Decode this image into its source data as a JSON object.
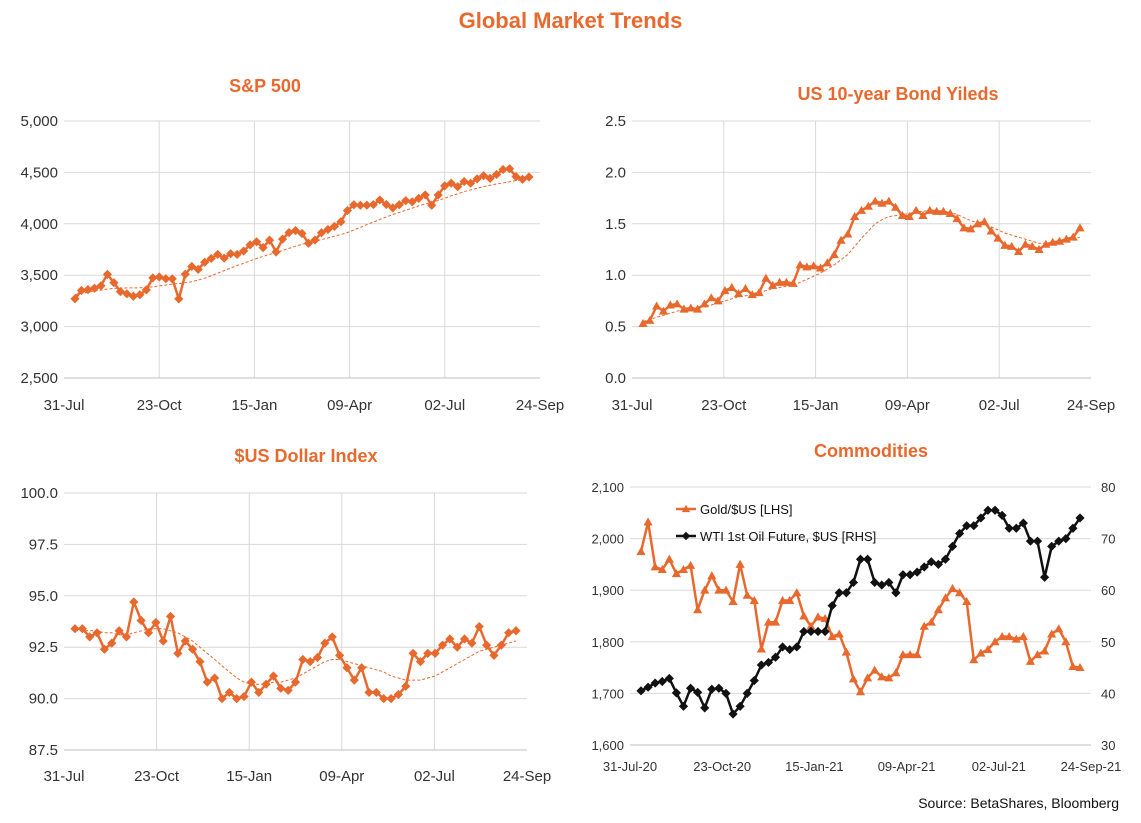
{
  "header": {
    "title": "Global Market Trends"
  },
  "footer": {
    "source": "Source: BetaShares, Bloomberg"
  },
  "colors": {
    "accent": "#e8692e",
    "grid": "#d9d9d9",
    "oil": "#111111"
  },
  "chart_data": [
    {
      "id": "sp500",
      "type": "line",
      "title": "S&P 500",
      "marker": "diamond",
      "ylim": [
        2500,
        5000
      ],
      "yticks": [
        "2,500",
        "3,000",
        "3,500",
        "4,000",
        "4,500",
        "5,000"
      ],
      "ytick_values": [
        2500,
        3000,
        3500,
        4000,
        4500,
        5000
      ],
      "xticks": [
        "31-Jul",
        "23-Oct",
        "15-Jan",
        "09-Apr",
        "02-Jul",
        "24-Sep"
      ],
      "grid": "vertical",
      "series": [
        {
          "values": [
            3271,
            3351,
            3360,
            3373,
            3397,
            3508,
            3427,
            3340,
            3319,
            3295,
            3310,
            3357,
            3474,
            3483,
            3466,
            3465,
            3270,
            3509,
            3585,
            3557,
            3626,
            3663,
            3702,
            3666,
            3709,
            3702,
            3735,
            3795,
            3825,
            3768,
            3841,
            3726,
            3851,
            3915,
            3934,
            3906,
            3811,
            3842,
            3913,
            3945,
            3975,
            4020,
            4128,
            4185,
            4180,
            4181,
            4187,
            4232,
            4188,
            4155,
            4185,
            4225,
            4214,
            4247,
            4281,
            4180,
            4280,
            4369,
            4395,
            4361,
            4411,
            4395,
            4437,
            4468,
            4442,
            4480,
            4528,
            4536,
            4459,
            4433,
            4455
          ]
        },
        {
          "style": "dashed",
          "values": [
            3310,
            3325,
            3335,
            3345,
            3355,
            3365,
            3372,
            3375,
            3376,
            3376,
            3377,
            3380,
            3387,
            3396,
            3405,
            3413,
            3419,
            3426,
            3437,
            3452,
            3471,
            3495,
            3519,
            3545,
            3570,
            3594,
            3616,
            3640,
            3662,
            3683,
            3703,
            3720,
            3740,
            3761,
            3782,
            3801,
            3814,
            3829,
            3846,
            3862,
            3878,
            3896,
            3914,
            3940,
            3966,
            3992,
            4017,
            4042,
            4066,
            4090,
            4110,
            4132,
            4153,
            4174,
            4193,
            4208,
            4227,
            4248,
            4272,
            4292,
            4313,
            4330,
            4345,
            4362,
            4375,
            4388,
            4398,
            4410,
            4420,
            4430,
            4438
          ]
        }
      ]
    },
    {
      "id": "bonds",
      "type": "line",
      "title": "US 10-year Bond Yileds",
      "marker": "triangle",
      "ylim": [
        0.0,
        2.5
      ],
      "yticks": [
        "0.0",
        "0.5",
        "1.0",
        "1.5",
        "2.0",
        "2.5"
      ],
      "ytick_values": [
        0.0,
        0.5,
        1.0,
        1.5,
        2.0,
        2.5
      ],
      "xticks": [
        "31-Jul",
        "23-Oct",
        "15-Jan",
        "09-Apr",
        "02-Jul",
        "24-Sep"
      ],
      "grid": "vertical",
      "series": [
        {
          "values": [
            0.53,
            0.56,
            0.7,
            0.65,
            0.71,
            0.72,
            0.67,
            0.68,
            0.67,
            0.72,
            0.78,
            0.75,
            0.85,
            0.88,
            0.82,
            0.87,
            0.81,
            0.83,
            0.97,
            0.9,
            0.93,
            0.93,
            0.92,
            1.1,
            1.08,
            1.09,
            1.07,
            1.12,
            1.2,
            1.34,
            1.4,
            1.57,
            1.63,
            1.67,
            1.72,
            1.7,
            1.72,
            1.66,
            1.58,
            1.57,
            1.63,
            1.58,
            1.63,
            1.62,
            1.62,
            1.6,
            1.55,
            1.46,
            1.45,
            1.5,
            1.52,
            1.43,
            1.36,
            1.29,
            1.28,
            1.23,
            1.3,
            1.28,
            1.25,
            1.3,
            1.32,
            1.33,
            1.35,
            1.37,
            1.46
          ]
        },
        {
          "style": "dashed",
          "values": [
            0.55,
            0.57,
            0.59,
            0.61,
            0.63,
            0.65,
            0.67,
            0.68,
            0.69,
            0.7,
            0.71,
            0.73,
            0.75,
            0.77,
            0.79,
            0.8,
            0.81,
            0.83,
            0.85,
            0.87,
            0.88,
            0.89,
            0.9,
            0.93,
            0.96,
            0.99,
            1.02,
            1.06,
            1.1,
            1.15,
            1.2,
            1.28,
            1.36,
            1.43,
            1.5,
            1.54,
            1.57,
            1.58,
            1.59,
            1.6,
            1.62,
            1.62,
            1.63,
            1.63,
            1.62,
            1.61,
            1.59,
            1.56,
            1.53,
            1.51,
            1.49,
            1.47,
            1.44,
            1.41,
            1.39,
            1.37,
            1.35,
            1.33,
            1.31,
            1.31,
            1.31,
            1.32,
            1.33,
            1.35,
            1.37
          ]
        }
      ]
    },
    {
      "id": "dollar",
      "type": "line",
      "title": "$US Dollar Index",
      "marker": "diamond",
      "ylim": [
        87.5,
        100.0
      ],
      "yticks": [
        "87.5",
        "90.0",
        "92.5",
        "95.0",
        "97.5",
        "100.0"
      ],
      "ytick_values": [
        87.5,
        90.0,
        92.5,
        95.0,
        97.5,
        100.0
      ],
      "xticks": [
        "31-Jul",
        "23-Oct",
        "15-Jan",
        "09-Apr",
        "02-Jul",
        "24-Sep"
      ],
      "grid": "vertical",
      "series": [
        {
          "values": [
            93.4,
            93.4,
            93.0,
            93.2,
            92.4,
            92.7,
            93.3,
            93.0,
            94.7,
            93.8,
            93.2,
            93.7,
            92.8,
            94.0,
            92.2,
            92.8,
            92.4,
            91.8,
            90.8,
            91.0,
            90.0,
            90.3,
            90.0,
            90.1,
            90.8,
            90.3,
            90.7,
            91.1,
            90.5,
            90.4,
            90.8,
            91.9,
            91.8,
            92.0,
            92.7,
            93.0,
            92.1,
            91.5,
            90.9,
            91.5,
            90.3,
            90.3,
            90.0,
            90.0,
            90.2,
            90.6,
            92.2,
            91.8,
            92.2,
            92.2,
            92.6,
            92.9,
            92.5,
            92.9,
            92.7,
            93.5,
            92.6,
            92.1,
            92.6,
            93.2,
            93.3
          ]
        },
        {
          "style": "dashed",
          "values": [
            93.3,
            93.3,
            93.3,
            93.3,
            93.2,
            93.2,
            93.1,
            93.1,
            93.2,
            93.3,
            93.4,
            93.4,
            93.4,
            93.3,
            93.2,
            93.0,
            92.8,
            92.5,
            92.2,
            91.9,
            91.6,
            91.3,
            91.0,
            90.8,
            90.7,
            90.7,
            90.7,
            90.8,
            90.8,
            90.9,
            91.0,
            91.2,
            91.4,
            91.6,
            91.8,
            91.9,
            91.9,
            91.8,
            91.7,
            91.6,
            91.5,
            91.4,
            91.3,
            91.1,
            91.0,
            90.9,
            90.9,
            90.9,
            91.0,
            91.1,
            91.3,
            91.5,
            91.7,
            91.9,
            92.1,
            92.3,
            92.4,
            92.5,
            92.6,
            92.7,
            92.8
          ]
        }
      ]
    },
    {
      "id": "commodities",
      "type": "line",
      "title": "Commodities",
      "ylim": [
        1600,
        2100
      ],
      "yticks": [
        "1,600",
        "1,700",
        "1,800",
        "1,900",
        "2,000",
        "2,100"
      ],
      "ytick_values": [
        1600,
        1700,
        1800,
        1900,
        2000,
        2100
      ],
      "y2lim": [
        30,
        80
      ],
      "y2ticks": [
        "30",
        "40",
        "50",
        "60",
        "70",
        "80"
      ],
      "y2tick_values": [
        30,
        40,
        50,
        60,
        70,
        80
      ],
      "xticks": [
        "31-Jul-20",
        "23-Oct-20",
        "15-Jan-21",
        "09-Apr-21",
        "02-Jul-21",
        "24-Sep-21"
      ],
      "grid": "none",
      "legend": "top-left",
      "series": [
        {
          "name": "Gold/$US [LHS]",
          "axis": "left",
          "marker": "triangle",
          "values": [
            1975,
            2032,
            1945,
            1940,
            1960,
            1932,
            1940,
            1948,
            1862,
            1900,
            1928,
            1900,
            1900,
            1878,
            1950,
            1890,
            1880,
            1786,
            1838,
            1838,
            1880,
            1880,
            1895,
            1850,
            1830,
            1848,
            1845,
            1810,
            1815,
            1780,
            1728,
            1703,
            1730,
            1745,
            1732,
            1730,
            1740,
            1775,
            1775,
            1775,
            1830,
            1838,
            1862,
            1885,
            1903,
            1895,
            1878,
            1765,
            1778,
            1785,
            1800,
            1810,
            1810,
            1805,
            1810,
            1762,
            1775,
            1782,
            1815,
            1825,
            1800,
            1752,
            1750
          ]
        },
        {
          "name": "WTI 1st Oil Future, $US [RHS]",
          "axis": "right",
          "marker": "diamond",
          "values": [
            40.5,
            41.2,
            42.0,
            42.3,
            42.9,
            40.1,
            37.5,
            41.0,
            40.2,
            37.2,
            40.8,
            41.0,
            40.0,
            36.0,
            37.5,
            40.0,
            42.5,
            45.5,
            46.0,
            47.0,
            49.0,
            48.5,
            49.0,
            52.0,
            52.0,
            52.0,
            52.0,
            57.0,
            59.5,
            59.5,
            61.5,
            66.0,
            66.0,
            61.5,
            61.0,
            61.5,
            59.5,
            63.0,
            63.0,
            63.5,
            64.5,
            65.5,
            65.0,
            66.0,
            68.5,
            71.0,
            72.5,
            72.5,
            74.0,
            75.5,
            75.5,
            74.5,
            72.0,
            72.0,
            73.0,
            69.5,
            69.5,
            62.5,
            68.5,
            69.5,
            70.0,
            72.0,
            74.0
          ]
        }
      ]
    }
  ]
}
